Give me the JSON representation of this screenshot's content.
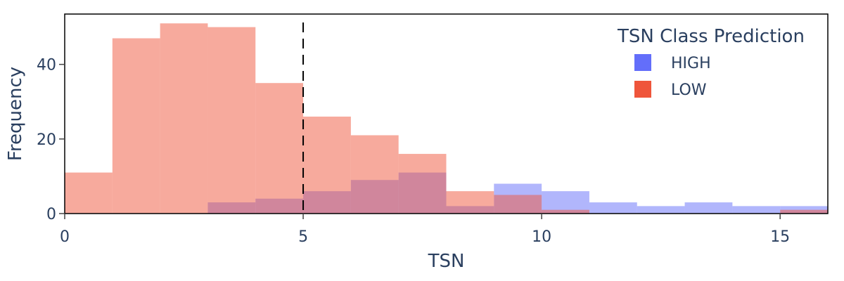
{
  "chart_data": {
    "type": "bar",
    "xlabel": "TSN",
    "ylabel": "Frequency",
    "xlim": [
      0,
      16
    ],
    "ylim": [
      0,
      53.5
    ],
    "x_ticks": [
      0,
      5,
      10,
      15
    ],
    "y_ticks": [
      0,
      20,
      40
    ],
    "bin_width": 1,
    "bin_starts": [
      0,
      1,
      2,
      3,
      4,
      5,
      6,
      7,
      8,
      9,
      10,
      11,
      12,
      13,
      14,
      15
    ],
    "vertical_line": {
      "x": 5,
      "style": "dashed",
      "color": "#000000"
    },
    "legend": {
      "title": "TSN Class Prediction",
      "placement": "top-right"
    },
    "series": [
      {
        "name": "HIGH",
        "color": "#636efa",
        "values": [
          0,
          0,
          0,
          3,
          4,
          6,
          9,
          11,
          2,
          8,
          6,
          3,
          2,
          3,
          2,
          2
        ]
      },
      {
        "name": "LOW",
        "color": "#ef553b",
        "values": [
          11,
          47,
          51,
          50,
          35,
          26,
          21,
          16,
          6,
          5,
          1,
          0,
          0,
          0,
          0,
          1
        ]
      }
    ]
  }
}
